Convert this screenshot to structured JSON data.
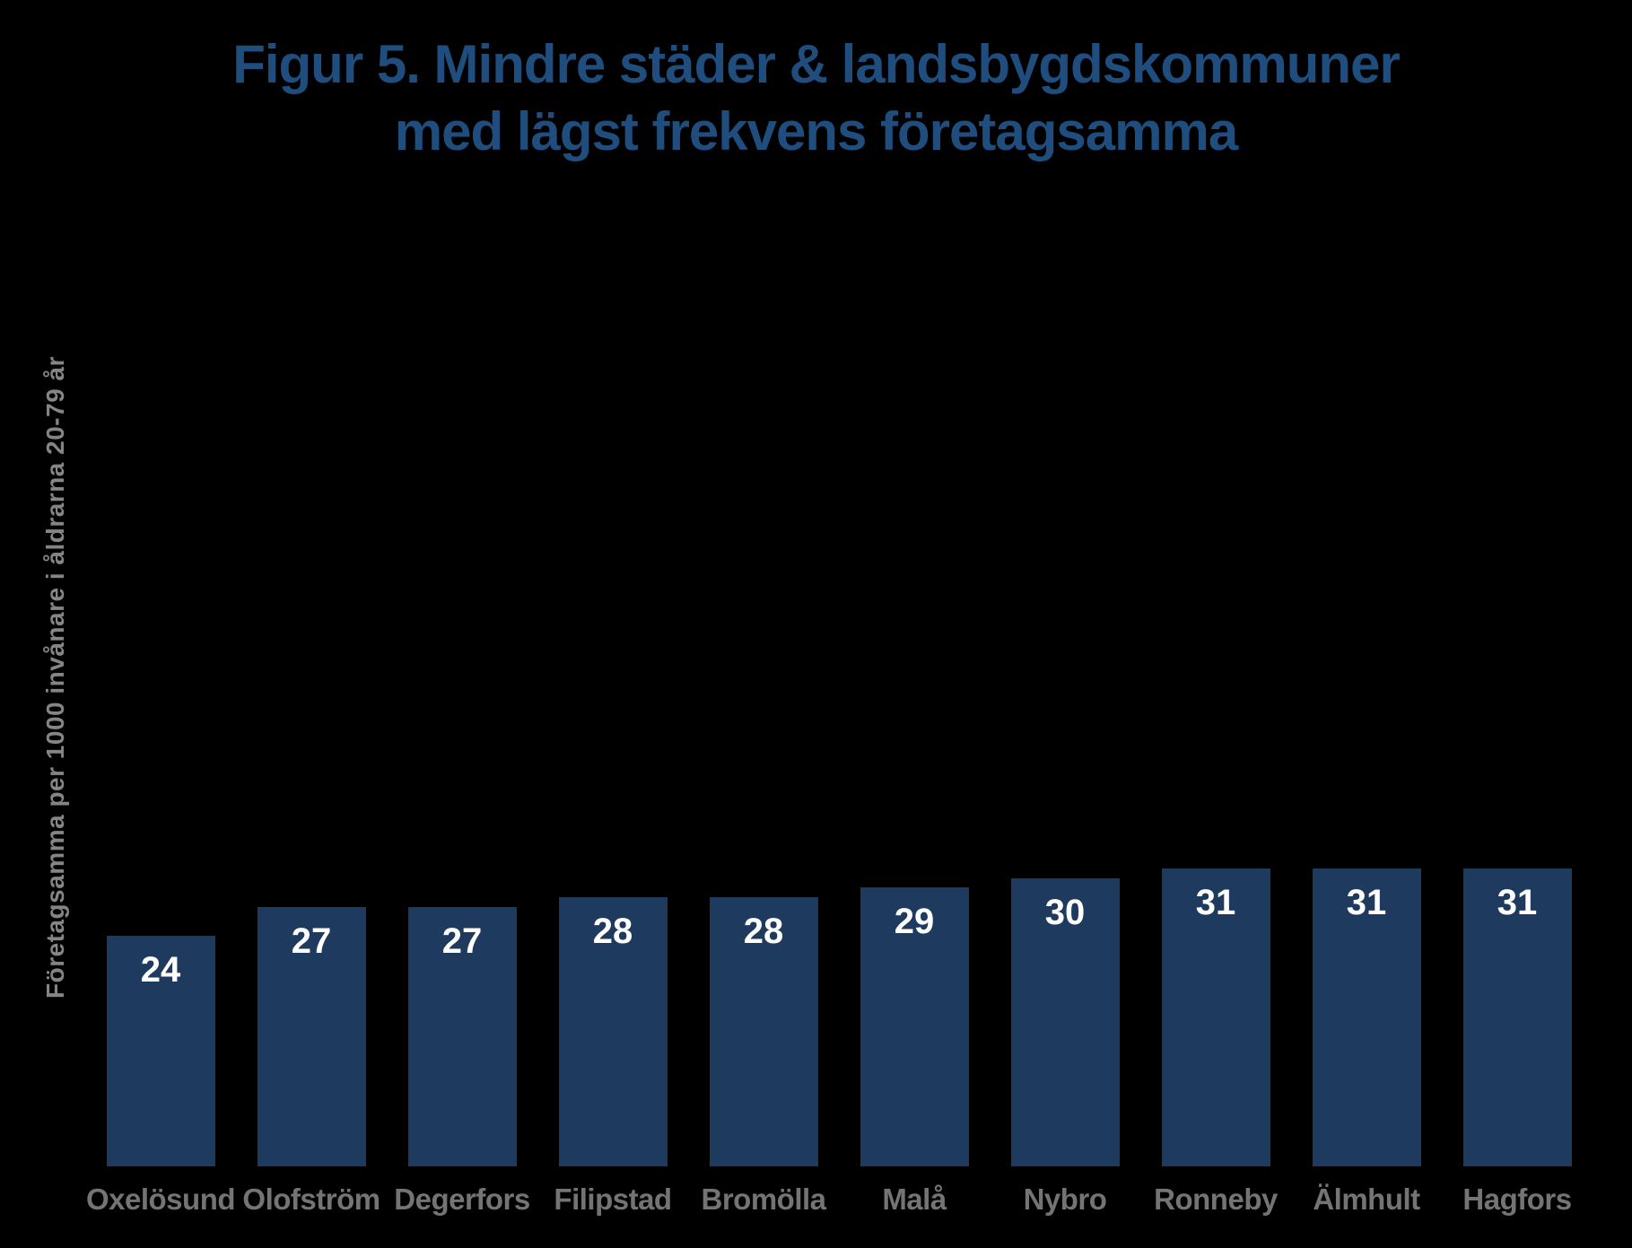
{
  "title": {
    "line1": "Figur 5. Mindre städer & landsbygdskommuner",
    "line2": "med lägst frekvens företagsamma"
  },
  "colors": {
    "background": "#000000",
    "bar": "#1e3a5e",
    "title_text": "#1f4e7e",
    "value_label": "#ffffff",
    "category_label": "#747474",
    "axis_label": "#858585"
  },
  "chart_data": {
    "type": "bar",
    "title": "Figur 5. Mindre städer & landsbygdskommuner med lägst frekvens företagsamma",
    "categories": [
      "Oxelösund",
      "Olofström",
      "Degerfors",
      "Filipstad",
      "Bromölla",
      "Malå",
      "Nybro",
      "Ronneby",
      "Älmhult",
      "Hagfors"
    ],
    "values": [
      24,
      27,
      27,
      28,
      28,
      29,
      30,
      31,
      31,
      31
    ],
    "xlabel": "",
    "ylabel": "Företagsamma per 1000 invånare i åldrarna 20-79 år",
    "ylim": [
      0,
      35
    ],
    "grid": false,
    "legend": false,
    "axis_lines": false,
    "value_labels": "inside bar top, white bold"
  }
}
